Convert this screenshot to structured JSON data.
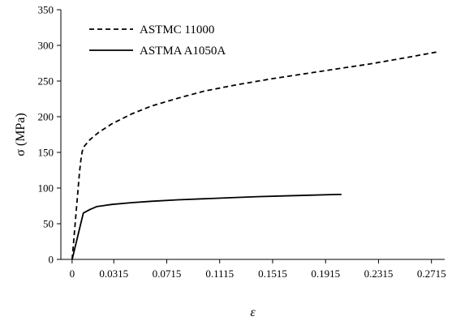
{
  "chart_data": {
    "type": "line",
    "xlabel": "ε",
    "ylabel": "σ (MPa)",
    "xlim": [
      -0.0085,
      0.2815
    ],
    "ylim": [
      0,
      350
    ],
    "x_ticks": [
      "0",
      "0.0315",
      "0.0715",
      "0.1115",
      "0.1515",
      "0.1915",
      "0.2315",
      "0.2715"
    ],
    "y_ticks": [
      "0",
      "50",
      "100",
      "150",
      "200",
      "250",
      "300",
      "350"
    ],
    "grid": false,
    "legend_position": "top-left",
    "series": [
      {
        "name": "ASTMC 11000",
        "style": "dashed",
        "color": "#000000",
        "points": [
          [
            0,
            0
          ],
          [
            0.0055,
            120
          ],
          [
            0.0065,
            138
          ],
          [
            0.0075,
            150
          ],
          [
            0.0085,
            157
          ],
          [
            0.0135,
            168
          ],
          [
            0.02,
            178
          ],
          [
            0.03,
            190
          ],
          [
            0.045,
            204
          ],
          [
            0.06,
            215
          ],
          [
            0.08,
            226
          ],
          [
            0.1,
            236
          ],
          [
            0.125,
            245
          ],
          [
            0.15,
            253
          ],
          [
            0.175,
            260
          ],
          [
            0.2,
            267
          ],
          [
            0.225,
            274
          ],
          [
            0.25,
            282
          ],
          [
            0.2765,
            291
          ]
        ]
      },
      {
        "name": "ASTMA A1050A",
        "style": "solid",
        "color": "#000000",
        "points": [
          [
            0,
            0
          ],
          [
            0.0065,
            50
          ],
          [
            0.0085,
            65
          ],
          [
            0.0135,
            70
          ],
          [
            0.0185,
            74
          ],
          [
            0.03,
            77
          ],
          [
            0.045,
            79.5
          ],
          [
            0.06,
            81.5
          ],
          [
            0.08,
            83.5
          ],
          [
            0.1,
            85
          ],
          [
            0.12,
            86.5
          ],
          [
            0.14,
            88
          ],
          [
            0.16,
            89
          ],
          [
            0.18,
            90
          ],
          [
            0.2,
            91
          ],
          [
            0.2035,
            91
          ]
        ]
      }
    ]
  }
}
